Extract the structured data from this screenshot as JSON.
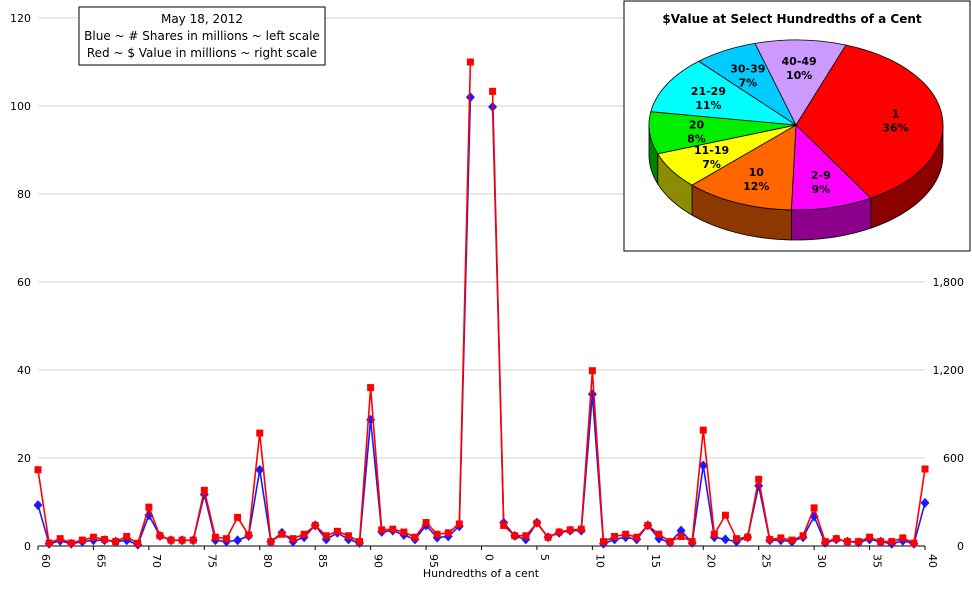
{
  "chart_data": [
    {
      "type": "line",
      "legend_box": {
        "line1": "May 18, 2012",
        "line2": "Blue ~ # Shares in millions ~ left scale",
        "line3": "Red ~ $ Value in millions ~ right scale"
      },
      "xlabel": "Hundredths of a cent",
      "x_tick_labels": [
        "60",
        "65",
        "70",
        "75",
        "80",
        "85",
        "90",
        "95",
        "0",
        "5",
        "10",
        "15",
        "20",
        "25",
        "30",
        "35",
        "40"
      ],
      "left_ticks": [
        "0",
        "20",
        "40",
        "60",
        "80",
        "100",
        "120"
      ],
      "right_ticks": [
        "0",
        "600",
        "1,200",
        "1,800"
      ],
      "left_ylim": [
        0,
        120
      ],
      "right_ylim": [
        0,
        3600
      ],
      "grid": true,
      "x": [
        60,
        61,
        62,
        63,
        64,
        65,
        66,
        67,
        68,
        69,
        70,
        71,
        72,
        73,
        74,
        75,
        76,
        77,
        78,
        79,
        80,
        81,
        82,
        83,
        84,
        85,
        86,
        87,
        88,
        89,
        90,
        91,
        92,
        93,
        94,
        95,
        96,
        97,
        98,
        99,
        0,
        1,
        2,
        3,
        4,
        5,
        6,
        7,
        8,
        9,
        10,
        11,
        12,
        13,
        14,
        15,
        16,
        17,
        18,
        19,
        20,
        21,
        22,
        23,
        24,
        25,
        26,
        27,
        28,
        29,
        30,
        31,
        32,
        33,
        34,
        35,
        36,
        37,
        38,
        39,
        40
      ],
      "series": [
        {
          "color": "#1a1aff",
          "axis": "left",
          "values": [
            9.3,
            0.5,
            1.2,
            0.5,
            1,
            1.3,
            1.3,
            1,
            1.3,
            0.3,
            7,
            2.3,
            1.3,
            1.3,
            1.3,
            11.7,
            1.3,
            1,
            1.3,
            2.3,
            17.3,
            1,
            3,
            1,
            2,
            4.7,
            1.5,
            3,
            1.5,
            0.7,
            28.7,
            3.2,
            3.5,
            2.5,
            1.5,
            4.7,
            1.9,
            2.2,
            4.5,
            102,
            null,
            99.8,
            5.3,
            2.3,
            1.5,
            5.3,
            2,
            3,
            3.5,
            3.5,
            34.5,
            0.5,
            1.5,
            2,
            1.5,
            4.7,
            1.7,
            0.8,
            3.5,
            0.7,
            18.3,
            2,
            1.5,
            1,
            2,
            13.7,
            1.3,
            1.3,
            1,
            2,
            6.7,
            0.7,
            1.5,
            1,
            0.8,
            1.5,
            1,
            0.5,
            1.2,
            0.5,
            9.8
          ]
        },
        {
          "color": "#ff0000",
          "axis": "right",
          "values": [
            520,
            20,
            50,
            20,
            40,
            60,
            45,
            30,
            65,
            18,
            265,
            70,
            40,
            40,
            40,
            380,
            60,
            50,
            195,
            75,
            770,
            30,
            80,
            50,
            80,
            140,
            70,
            100,
            70,
            30,
            1080,
            110,
            115,
            95,
            60,
            160,
            80,
            90,
            150,
            3300,
            null,
            3100,
            140,
            70,
            70,
            155,
            60,
            95,
            110,
            115,
            1195,
            30,
            65,
            80,
            60,
            140,
            80,
            30,
            65,
            30,
            790,
            80,
            210,
            50,
            60,
            455,
            45,
            55,
            40,
            70,
            260,
            30,
            50,
            30,
            30,
            60,
            30,
            30,
            55,
            20,
            525
          ]
        }
      ]
    },
    {
      "type": "pie",
      "title": "$Value at Select Hundredths of a Cent",
      "slices": [
        {
          "label": "1",
          "percent_label": "36%",
          "value": 36,
          "color": "#ff0000"
        },
        {
          "label": "2-9",
          "percent_label": "9%",
          "value": 9,
          "color": "#ff00ff"
        },
        {
          "label": "10",
          "percent_label": "12%",
          "value": 12,
          "color": "#ff6600"
        },
        {
          "label": "11-19",
          "percent_label": "7%",
          "value": 7,
          "color": "#ffff00"
        },
        {
          "label": "20",
          "percent_label": "8%",
          "value": 8,
          "color": "#00ee00"
        },
        {
          "label": "21-29",
          "percent_label": "11%",
          "value": 11,
          "color": "#00ffff"
        },
        {
          "label": "30-39",
          "percent_label": "7%",
          "value": 7,
          "color": "#00ccff"
        },
        {
          "label": "40-49",
          "percent_label": "10%",
          "value": 10,
          "color": "#cc99ff"
        }
      ]
    }
  ]
}
